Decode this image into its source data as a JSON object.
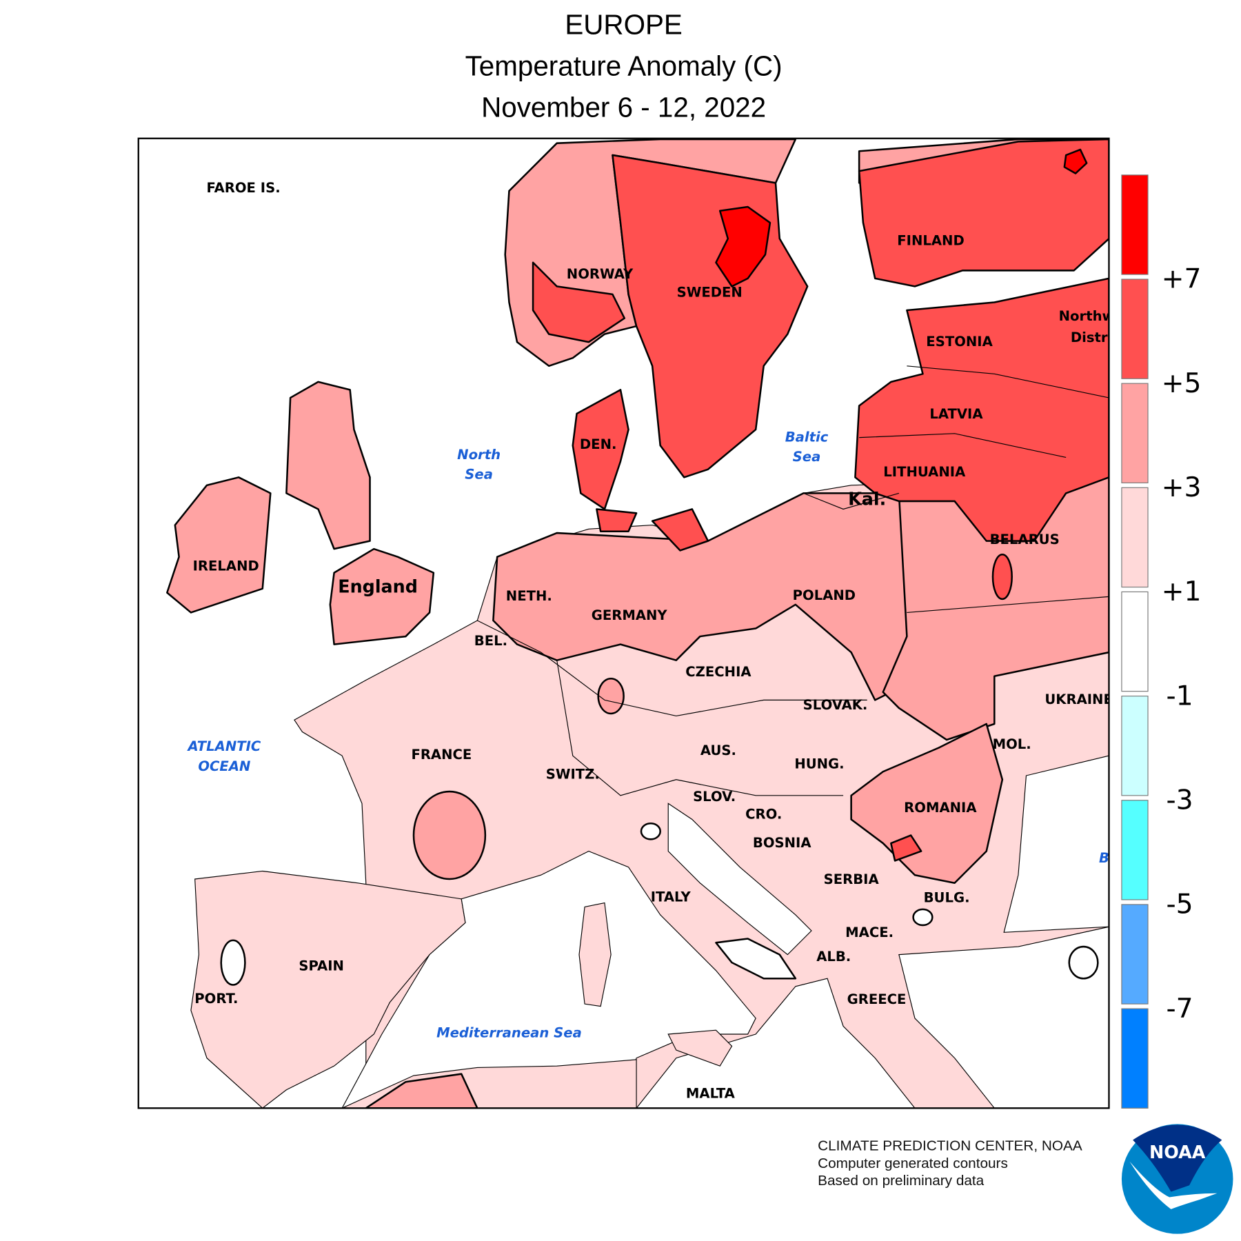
{
  "header": {
    "region": "EUROPE",
    "variable": "Temperature Anomaly (C)",
    "period": "November 6 - 12, 2022"
  },
  "legend": {
    "labels": [
      "+7",
      "+5",
      "+3",
      "+1",
      "-1",
      "-3",
      "-5",
      "-7"
    ],
    "bins": [
      {
        "range": "> +7",
        "color": "#ff0000"
      },
      {
        "range": "+5 to +7",
        "color": "#ff5050"
      },
      {
        "range": "+3 to +5",
        "color": "#ffa3a3"
      },
      {
        "range": "+1 to +3",
        "color": "#ffd9d9"
      },
      {
        "range": "-1 to +1",
        "color": "#ffffff"
      },
      {
        "range": "-3 to -1",
        "color": "#ccffff"
      },
      {
        "range": "-5 to -3",
        "color": "#55ffff"
      },
      {
        "range": "-7 to -5",
        "color": "#55aaff"
      },
      {
        "range": "< -7",
        "color": "#0080ff"
      }
    ]
  },
  "map": {
    "countries": {
      "faroe": "FAROE IS.",
      "norway": "NORWAY",
      "sweden": "SWEDEN",
      "finland": "FINLAND",
      "northwest": "Northw",
      "district": "Distri",
      "estonia": "ESTONIA",
      "latvia": "LATVIA",
      "lithuania": "LITHUANIA",
      "kal": "Kal.",
      "belarus": "BELARUS",
      "den": "DEN.",
      "ireland": "IRELAND",
      "england": "England",
      "neth": "NETH.",
      "bel": "BEL.",
      "germany": "GERMANY",
      "poland": "POLAND",
      "czechia": "CZECHIA",
      "slovak": "SLOVAK.",
      "ukraine": "UKRAINE",
      "france": "FRANCE",
      "switz": "SWITZ.",
      "aus": "AUS.",
      "hung": "HUNG.",
      "mol": "MOL.",
      "slov": "SLOV.",
      "cro": "CRO.",
      "romania": "ROMANIA",
      "bosnia": "BOSNIA",
      "serbia": "SERBIA",
      "bulg": "BULG.",
      "italy": "ITALY",
      "mace": "MACE.",
      "alb": "ALB.",
      "spain": "SPAIN",
      "port": "PORT.",
      "greece": "GREECE",
      "malta": "MALTA"
    },
    "seas": {
      "north1": "North",
      "north2": "Sea",
      "baltic1": "Baltic",
      "baltic2": "Sea",
      "atlantic1": "ATLANTIC",
      "atlantic2": "OCEAN",
      "med": "Mediterranean Sea",
      "black": "B"
    }
  },
  "footer": {
    "line1": "CLIMATE PREDICTION CENTER, NOAA",
    "line2": "Computer generated contours",
    "line3": "Based on preliminary data"
  },
  "logo": {
    "text": "NOAA",
    "dark": "#003087",
    "light": "#0085ca"
  }
}
